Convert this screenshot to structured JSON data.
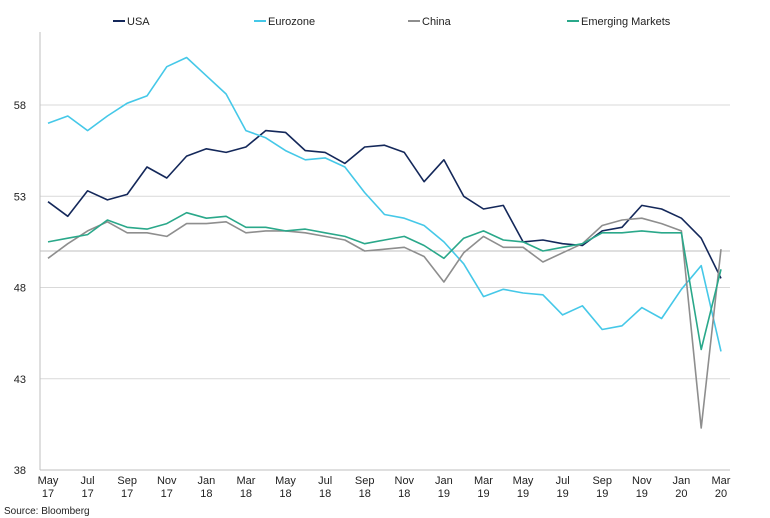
{
  "source": "Source: Bloomberg",
  "chart_data": {
    "type": "line",
    "title": "",
    "xlabel": "",
    "ylabel": "",
    "ylim": [
      38,
      62
    ],
    "yticks": [
      38,
      43,
      48,
      53,
      58
    ],
    "reference_line": 50,
    "grid": "horizontal",
    "legend_position": "top",
    "x": [
      "May 17",
      "Jun 17",
      "Jul 17",
      "Aug 17",
      "Sep 17",
      "Oct 17",
      "Nov 17",
      "Dec 17",
      "Jan 18",
      "Feb 18",
      "Mar 18",
      "Apr 18",
      "May 18",
      "Jun 18",
      "Jul 18",
      "Aug 18",
      "Sep 18",
      "Oct 18",
      "Nov 18",
      "Dec 18",
      "Jan 19",
      "Feb 19",
      "Mar 19",
      "Apr 19",
      "May 19",
      "Jun 19",
      "Jul 19",
      "Aug 19",
      "Sep 19",
      "Oct 19",
      "Nov 19",
      "Dec 19",
      "Jan 20",
      "Feb 20",
      "Mar 20"
    ],
    "xtick_labels": [
      {
        "index": 0,
        "line1": "May",
        "line2": "17"
      },
      {
        "index": 2,
        "line1": "Jul",
        "line2": "17"
      },
      {
        "index": 4,
        "line1": "Sep",
        "line2": "17"
      },
      {
        "index": 6,
        "line1": "Nov",
        "line2": "17"
      },
      {
        "index": 8,
        "line1": "Jan",
        "line2": "18"
      },
      {
        "index": 10,
        "line1": "Mar",
        "line2": "18"
      },
      {
        "index": 12,
        "line1": "May",
        "line2": "18"
      },
      {
        "index": 14,
        "line1": "Jul",
        "line2": "18"
      },
      {
        "index": 16,
        "line1": "Sep",
        "line2": "18"
      },
      {
        "index": 18,
        "line1": "Nov",
        "line2": "18"
      },
      {
        "index": 20,
        "line1": "Jan",
        "line2": "19"
      },
      {
        "index": 22,
        "line1": "Mar",
        "line2": "19"
      },
      {
        "index": 24,
        "line1": "May",
        "line2": "19"
      },
      {
        "index": 26,
        "line1": "Jul",
        "line2": "19"
      },
      {
        "index": 28,
        "line1": "Sep",
        "line2": "19"
      },
      {
        "index": 30,
        "line1": "Nov",
        "line2": "19"
      },
      {
        "index": 32,
        "line1": "Jan",
        "line2": "20"
      },
      {
        "index": 34,
        "line1": "Mar",
        "line2": "20"
      }
    ],
    "series": [
      {
        "name": "USA",
        "color": "#14285a",
        "values": [
          52.7,
          51.9,
          53.3,
          52.8,
          53.1,
          54.6,
          54.0,
          55.2,
          55.6,
          55.4,
          55.7,
          56.6,
          56.5,
          55.5,
          55.4,
          54.8,
          55.7,
          55.8,
          55.4,
          53.8,
          55.0,
          53.0,
          52.3,
          52.5,
          50.5,
          50.6,
          50.4,
          50.3,
          51.1,
          51.3,
          52.5,
          52.3,
          51.8,
          50.7,
          48.5
        ]
      },
      {
        "name": "Eurozone",
        "color": "#45c8e8",
        "values": [
          57.0,
          57.4,
          56.6,
          57.4,
          58.1,
          58.5,
          60.1,
          60.6,
          59.6,
          58.6,
          56.6,
          56.2,
          55.5,
          55.0,
          55.1,
          54.6,
          53.2,
          52.0,
          51.8,
          51.4,
          50.5,
          49.3,
          47.5,
          47.9,
          47.7,
          47.6,
          46.5,
          47.0,
          45.7,
          45.9,
          46.9,
          46.3,
          47.9,
          49.2,
          44.5
        ]
      },
      {
        "name": "China",
        "color": "#8e8e8e",
        "values": [
          49.6,
          50.4,
          51.1,
          51.6,
          51.0,
          51.0,
          50.8,
          51.5,
          51.5,
          51.6,
          51.0,
          51.1,
          51.1,
          51.0,
          50.8,
          50.6,
          50.0,
          50.1,
          50.2,
          49.7,
          48.3,
          49.9,
          50.8,
          50.2,
          50.2,
          49.4,
          49.9,
          50.4,
          51.4,
          51.7,
          51.8,
          51.5,
          51.1,
          40.3,
          50.1
        ]
      },
      {
        "name": "Emerging Markets",
        "color": "#2aa88a",
        "values": [
          50.5,
          50.7,
          50.9,
          51.7,
          51.3,
          51.2,
          51.5,
          52.1,
          51.8,
          51.9,
          51.3,
          51.3,
          51.1,
          51.2,
          51.0,
          50.8,
          50.4,
          50.6,
          50.8,
          50.3,
          49.6,
          50.7,
          51.1,
          50.6,
          50.5,
          50.0,
          50.2,
          50.4,
          51.0,
          51.0,
          51.1,
          51.0,
          51.0,
          44.6,
          49.0
        ]
      }
    ]
  }
}
